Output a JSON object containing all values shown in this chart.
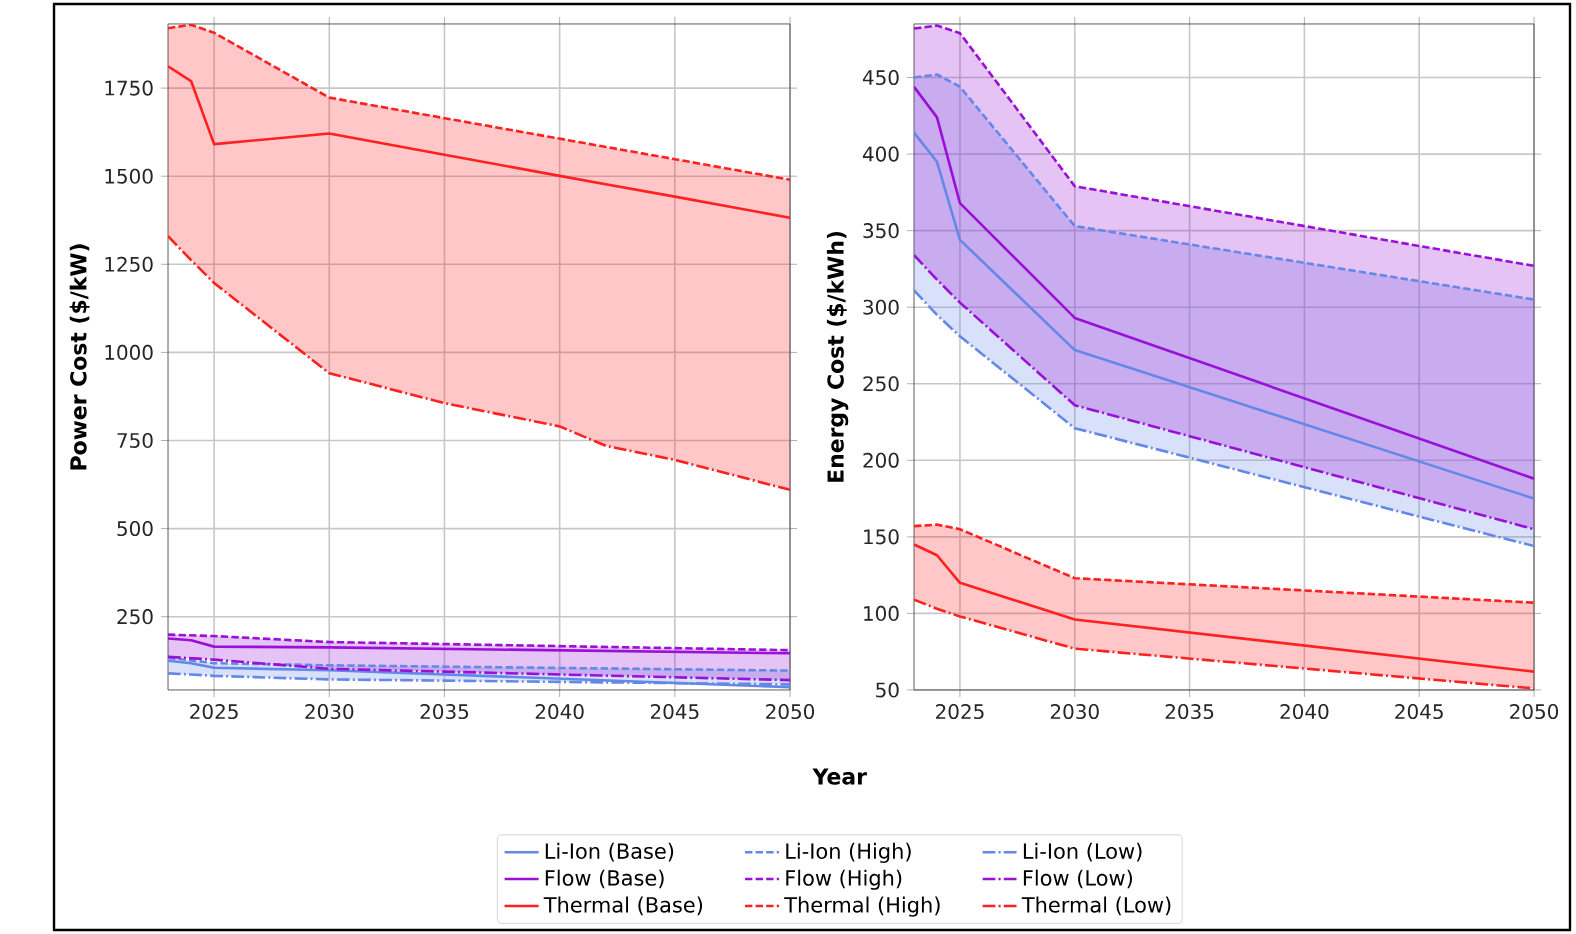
{
  "chart_data": [
    {
      "type": "line",
      "xlabel": "Year",
      "ylabel": "Power Cost ($/kW)",
      "x": [
        2023,
        2024,
        2025,
        2030,
        2050
      ],
      "xlim": [
        2023,
        2050
      ],
      "xticks": [
        2025,
        2030,
        2035,
        2040,
        2045,
        2050
      ],
      "ylim": [
        42,
        1932
      ],
      "yticks": [
        250,
        500,
        750,
        1000,
        1250,
        1500,
        1750
      ],
      "grid": true,
      "legend": "bottom",
      "series": [
        {
          "name": "Li-Ion (Base)",
          "color": "#6488e8",
          "line_style": "solid",
          "values": [
            125,
            118,
            105,
            98,
            50
          ],
          "lower": [
            89,
            86,
            82,
            72,
            58
          ],
          "upper": [
            133,
            126,
            118,
            112,
            97
          ]
        },
        {
          "name": "Li-Ion (High)",
          "color": "#6488e8",
          "line_style": "dashed",
          "values": [
            133,
            126,
            118,
            112,
            97
          ]
        },
        {
          "name": "Li-Ion (Low)",
          "color": "#6488e8",
          "line_style": "dashdot",
          "values": [
            89,
            86,
            82,
            72,
            58
          ]
        },
        {
          "name": "Flow (Base)",
          "color": "#9a10d8",
          "line_style": "solid",
          "values": [
            188,
            183,
            165,
            163,
            146
          ],
          "lower": [
            136,
            132,
            128,
            102,
            70
          ],
          "upper": [
            199,
            197,
            195,
            178,
            155
          ]
        },
        {
          "name": "Flow (High)",
          "color": "#9a10d8",
          "line_style": "dashed",
          "values": [
            199,
            197,
            195,
            178,
            155
          ]
        },
        {
          "name": "Flow (Low)",
          "color": "#9a10d8",
          "line_style": "dashdot",
          "values": [
            136,
            132,
            128,
            102,
            70
          ]
        },
        {
          "name": "Thermal (Base)",
          "color": "#ff2020",
          "line_style": "solid",
          "x": [
            2023,
            2024,
            2025,
            2030,
            2035,
            2040,
            2042,
            2045,
            2050
          ],
          "values": [
            1812,
            1770,
            1591,
            1621,
            1561,
            1501,
            1477,
            1442,
            1382
          ],
          "lower": [
            1330,
            1262,
            1197,
            941,
            856,
            790,
            735,
            695,
            610
          ],
          "upper": [
            1920,
            1930,
            1907,
            1723,
            1665,
            1607,
            1583,
            1548,
            1490
          ]
        },
        {
          "name": "Thermal (High)",
          "color": "#ff2020",
          "line_style": "dashed",
          "values": [
            1920,
            1930,
            1907,
            1723,
            1490
          ]
        },
        {
          "name": "Thermal (Low)",
          "color": "#ff2020",
          "line_style": "dashdot",
          "x": [
            2023,
            2024,
            2025,
            2030,
            2035,
            2040,
            2042,
            2045,
            2050
          ],
          "values": [
            1330,
            1262,
            1197,
            941,
            856,
            790,
            735,
            695,
            610
          ]
        }
      ]
    },
    {
      "type": "line",
      "ylabel": "Energy Cost ($/kWh)",
      "x": [
        2023,
        2024,
        2025,
        2030,
        2050
      ],
      "xlim": [
        2023,
        2050
      ],
      "xticks": [
        2025,
        2030,
        2035,
        2040,
        2045,
        2050
      ],
      "ylim": [
        50,
        485
      ],
      "yticks": [
        50,
        100,
        150,
        200,
        250,
        300,
        350,
        400,
        450
      ],
      "grid": true,
      "series": [
        {
          "color": "#6488e8",
          "line_style": "solid",
          "values": [
            414,
            395,
            344,
            272,
            175
          ],
          "lower": [
            311,
            295,
            281,
            221,
            144
          ],
          "upper": [
            450,
            452,
            444,
            353,
            305
          ]
        },
        {
          "color": "#6488e8",
          "line_style": "dashed",
          "values": [
            450,
            452,
            444,
            353,
            305
          ]
        },
        {
          "color": "#6488e8",
          "line_style": "dashdot",
          "values": [
            311,
            295,
            281,
            221,
            144
          ]
        },
        {
          "color": "#9a10d8",
          "line_style": "solid",
          "values": [
            444,
            424,
            368,
            293,
            188
          ],
          "lower": [
            334,
            318,
            303,
            236,
            155
          ],
          "upper": [
            482,
            484,
            479,
            379,
            327
          ]
        },
        {
          "color": "#9a10d8",
          "line_style": "dashed",
          "values": [
            482,
            484,
            479,
            379,
            327
          ]
        },
        {
          "color": "#9a10d8",
          "line_style": "dashdot",
          "values": [
            334,
            318,
            303,
            236,
            155
          ]
        },
        {
          "color": "#ff2020",
          "line_style": "solid",
          "values": [
            145,
            138,
            120,
            96,
            62
          ],
          "lower": [
            109,
            103,
            98,
            77,
            51
          ],
          "upper": [
            157,
            158,
            155,
            123,
            107
          ]
        },
        {
          "color": "#ff2020",
          "line_style": "dashed",
          "values": [
            157,
            158,
            155,
            123,
            107
          ]
        },
        {
          "color": "#ff2020",
          "line_style": "dashdot",
          "values": [
            109,
            103,
            98,
            77,
            51
          ]
        }
      ]
    }
  ]
}
